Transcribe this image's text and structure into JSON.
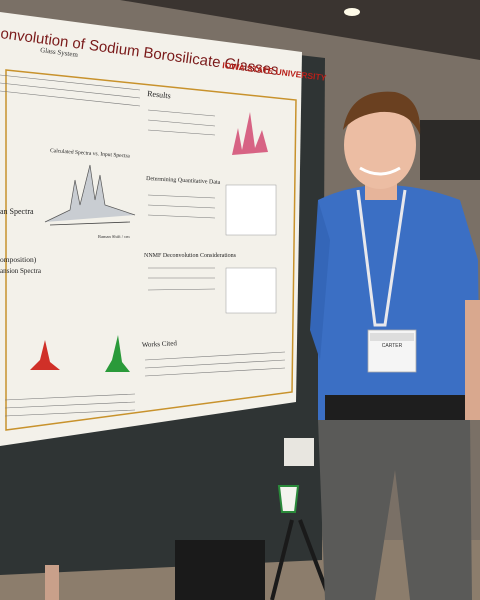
{
  "poster": {
    "title": "onvolution of Sodium Borosilicate Glasses",
    "university": "IOWA STATE UNIVERSITY",
    "subtitle": "Glass System",
    "sections": [
      "Results",
      "Determining Quantitative Data",
      "NNMF Deconvolution Considerations",
      "Works Cited"
    ],
    "left_headings": [
      "an Spectra",
      "omposition)",
      "ansion Spectra"
    ],
    "figure_caption": "Calculated Spectra vs. Input Spectra",
    "axis_label": "Raman Shift / cm"
  },
  "badge": {
    "name": "CARTER"
  }
}
